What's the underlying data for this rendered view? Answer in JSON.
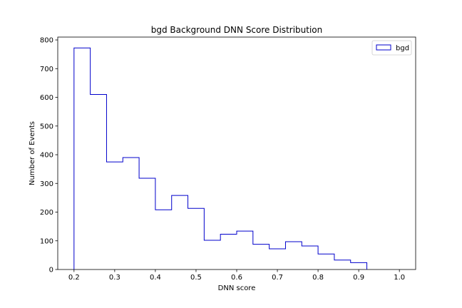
{
  "chart_data": {
    "type": "histogram-step",
    "title": "bgd Background DNN Score Distribution",
    "xlabel": "DNN score",
    "ylabel": "Number of Events",
    "xlim": [
      0.16,
      1.04
    ],
    "ylim": [
      0,
      810
    ],
    "xticks": [
      0.2,
      0.3,
      0.4,
      0.5,
      0.6,
      0.7,
      0.8,
      0.9,
      1.0
    ],
    "xtick_labels": [
      "0.2",
      "0.3",
      "0.4",
      "0.5",
      "0.6",
      "0.7",
      "0.8",
      "0.9",
      "1.0"
    ],
    "yticks": [
      0,
      100,
      200,
      300,
      400,
      500,
      600,
      700,
      800
    ],
    "ytick_labels": [
      "0",
      "100",
      "200",
      "300",
      "400",
      "500",
      "600",
      "700",
      "800"
    ],
    "grid": false,
    "legend": {
      "position": "top-right",
      "entries": [
        "bgd"
      ]
    },
    "series": [
      {
        "name": "bgd",
        "color": "#0000cc",
        "bin_edges": [
          0.2,
          0.24,
          0.28,
          0.32,
          0.36,
          0.4,
          0.44,
          0.48,
          0.52,
          0.56,
          0.6,
          0.64,
          0.68,
          0.72,
          0.76,
          0.8,
          0.84,
          0.88,
          0.92
        ],
        "counts": [
          772,
          610,
          375,
          390,
          318,
          208,
          258,
          213,
          102,
          123,
          134,
          88,
          72,
          97,
          82,
          54,
          33,
          24
        ]
      }
    ]
  }
}
